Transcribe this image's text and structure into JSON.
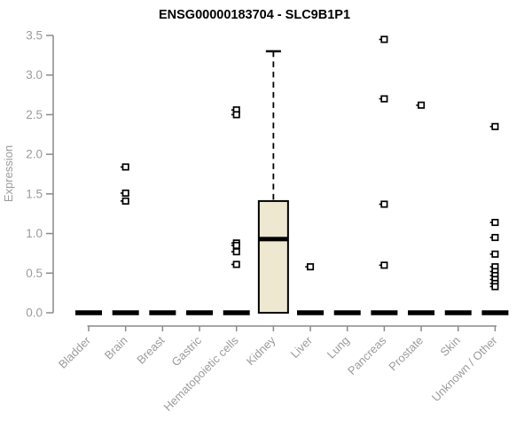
{
  "chart_data": {
    "type": "boxplot",
    "title": "ENSG00000183704 - SLC9B1P1",
    "xlabel": "",
    "ylabel": "Expression",
    "ylim": [
      0,
      3.5
    ],
    "ytick_values": [
      0,
      0.5,
      1,
      1.5,
      2,
      2.5,
      3,
      3.5
    ],
    "ytick_labels": [
      "0.0",
      "0.5",
      "1.0",
      "1.5",
      "2.0",
      "2.5",
      "3.0",
      "3.5"
    ],
    "grid": false,
    "legend": "none",
    "categories": [
      "Bladder",
      "Brain",
      "Breast",
      "Gastric",
      "Hematopoietic cells",
      "Kidney",
      "Liver",
      "Lung",
      "Pancreas",
      "Prostate",
      "Skin",
      "Unknown / Other"
    ],
    "boxes": [
      {
        "category": "Bladder",
        "median": 0,
        "q1": 0,
        "q3": 0,
        "whisker_low": 0,
        "whisker_high": 0,
        "outliers": []
      },
      {
        "category": "Brain",
        "median": 0,
        "q1": 0,
        "q3": 0,
        "whisker_low": 0,
        "whisker_high": 0,
        "outliers": [
          1.84,
          1.51,
          1.41
        ]
      },
      {
        "category": "Breast",
        "median": 0,
        "q1": 0,
        "q3": 0,
        "whisker_low": 0,
        "whisker_high": 0,
        "outliers": []
      },
      {
        "category": "Gastric",
        "median": 0,
        "q1": 0,
        "q3": 0,
        "whisker_low": 0,
        "whisker_high": 0,
        "outliers": []
      },
      {
        "category": "Hematopoietic cells",
        "median": 0,
        "q1": 0,
        "q3": 0,
        "whisker_low": 0,
        "whisker_high": 0,
        "outliers": [
          2.56,
          2.5,
          0.88,
          0.85,
          0.77,
          0.61
        ]
      },
      {
        "category": "Kidney",
        "median": 0.93,
        "q1": 0,
        "q3": 1.41,
        "whisker_low": 0,
        "whisker_high": 3.3,
        "outliers": []
      },
      {
        "category": "Liver",
        "median": 0,
        "q1": 0,
        "q3": 0,
        "whisker_low": 0,
        "whisker_high": 0,
        "outliers": [
          0.58
        ]
      },
      {
        "category": "Lung",
        "median": 0,
        "q1": 0,
        "q3": 0,
        "whisker_low": 0,
        "whisker_high": 0,
        "outliers": []
      },
      {
        "category": "Pancreas",
        "median": 0,
        "q1": 0,
        "q3": 0,
        "whisker_low": 0,
        "whisker_high": 0,
        "outliers": [
          3.45,
          2.7,
          1.37,
          0.6
        ]
      },
      {
        "category": "Prostate",
        "median": 0,
        "q1": 0,
        "q3": 0,
        "whisker_low": 0,
        "whisker_high": 0,
        "outliers": [
          2.62
        ]
      },
      {
        "category": "Skin",
        "median": 0,
        "q1": 0,
        "q3": 0,
        "whisker_low": 0,
        "whisker_high": 0,
        "outliers": []
      },
      {
        "category": "Unknown / Other",
        "median": 0,
        "q1": 0,
        "q3": 0,
        "whisker_low": 0,
        "whisker_high": 0,
        "outliers": [
          2.35,
          1.14,
          0.95,
          0.74,
          0.58,
          0.52,
          0.47,
          0.42,
          0.37,
          0.33
        ]
      }
    ],
    "colors": {
      "box_fill": "#EDE8CF",
      "box_border": "#000000",
      "flat_box": "#000000",
      "axis_line": "#8A8A8A",
      "tick_text": "#9B9B9B",
      "title_text": "#000000",
      "background": "#FFFFFF"
    }
  }
}
